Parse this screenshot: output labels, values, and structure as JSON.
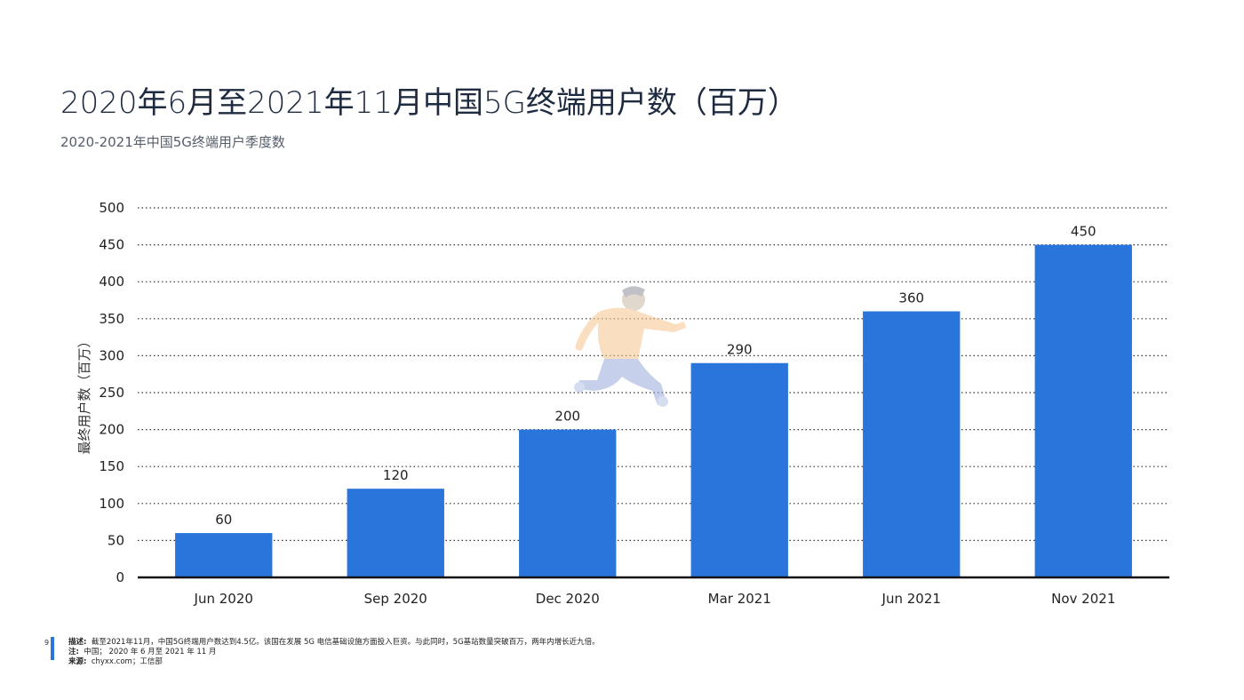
{
  "page": {
    "title": "2020年6月至2021年11月中国5G终端用户数（百万）",
    "subtitle": "2020-2021年中国5G终端用户季度数",
    "page_number": "9"
  },
  "footer": {
    "desc_label": "描述:",
    "desc_text": "截至2021年11月，中国5G终端用户数达到4.5亿。该国在发展 5G 电信基础设施方面投入巨资。与此同时，5G基站数量突破百万，两年内增长近九倍。",
    "note_label": "注:",
    "note_text": "中国； 2020 年 6 月至 2021 年 11 月",
    "source_label": "来源:",
    "source_text": "chyxx.com；工信部"
  },
  "chart_data": {
    "type": "bar",
    "categories": [
      "Jun 2020",
      "Sep 2020",
      "Dec 2020",
      "Mar 2021",
      "Jun 2021",
      "Nov 2021"
    ],
    "values": [
      60,
      120,
      200,
      290,
      360,
      450
    ],
    "ylabel": "最终用户数（百万）",
    "xlabel": "",
    "ylim": [
      0,
      500
    ],
    "yticks": [
      0,
      50,
      100,
      150,
      200,
      250,
      300,
      350,
      400,
      450,
      500
    ],
    "grid": true,
    "data_labels": true,
    "bar_color": "#2a75dc"
  },
  "colors": {
    "accent": "#2a75dc",
    "title": "#1e2b40"
  }
}
